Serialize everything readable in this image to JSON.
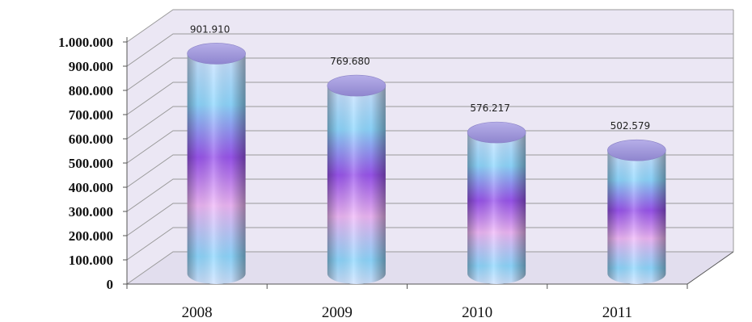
{
  "chart_data": {
    "type": "bar",
    "style": "3d-cylinder",
    "categories": [
      "2008",
      "2009",
      "2010",
      "2011"
    ],
    "values": [
      901910,
      769680,
      576217,
      502579
    ],
    "data_labels": [
      "901.910",
      "769.680",
      "576.217",
      "502.579"
    ],
    "y_ticks": [
      "0",
      "100.000",
      "200.000",
      "300.000",
      "400.000",
      "500.000",
      "600.000",
      "700.000",
      "800.000",
      "900.000",
      "1.000.000"
    ],
    "ylim": [
      0,
      1000000
    ],
    "grid": true,
    "legend": "none",
    "title": "",
    "xlabel": "",
    "ylabel": "",
    "colors": {
      "background": "#ebe7f4",
      "gridline": "#9a9a9a",
      "cylinder_light": "#cfe2ff",
      "cylinder_cyan": "#8fd8ff",
      "cylinder_purple": "#9a55ee",
      "cylinder_pink": "#f0b8f8"
    }
  }
}
